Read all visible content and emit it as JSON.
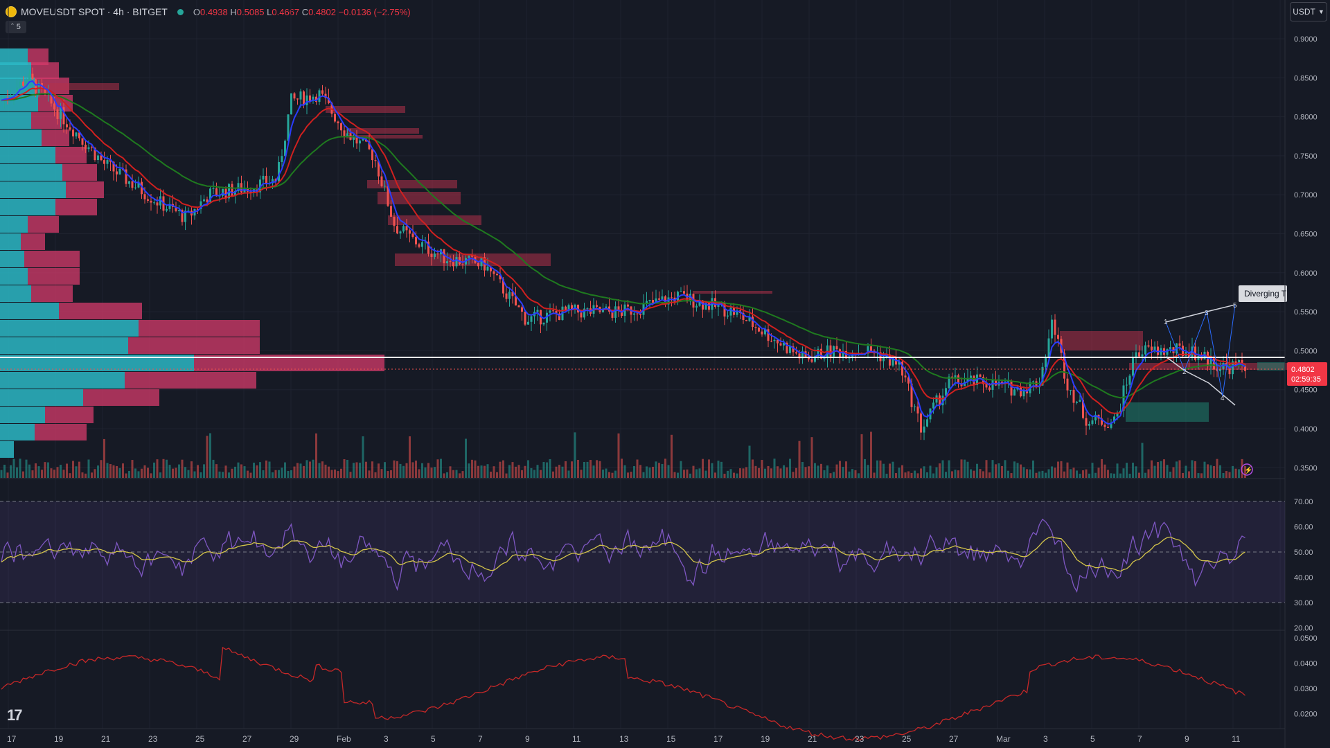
{
  "header": {
    "symbol": "MOVEUSDT SPOT · 4h · BITGET",
    "open_label": "O",
    "open": "0.4938",
    "high_label": "H",
    "high": "0.5085",
    "low_label": "L",
    "low": "0.4667",
    "close_label": "C",
    "close": "0.4802",
    "change": "−0.0136 (−2.75%)",
    "indicator_count": "5"
  },
  "currency": "USDT",
  "price_axis": {
    "ticks": [
      "0.9000",
      "0.8500",
      "0.8000",
      "0.7500",
      "0.7000",
      "0.6500",
      "0.6000",
      "0.5500",
      "0.5000",
      "0.4500",
      "0.4000",
      "0.3500"
    ],
    "last_price": "0.4802",
    "countdown": "02:59:35"
  },
  "rsi_axis": {
    "ticks": [
      "70.00",
      "60.00",
      "50.00",
      "40.00",
      "30.00",
      "20.00"
    ]
  },
  "vol_axis": {
    "ticks": [
      "0.0500",
      "0.0400",
      "0.0300",
      "0.0200"
    ]
  },
  "time_axis": {
    "labels": [
      "17",
      "19",
      "21",
      "23",
      "25",
      "27",
      "29",
      "Feb",
      "3",
      "5",
      "7",
      "9",
      "11",
      "13",
      "15",
      "17",
      "19",
      "21",
      "23",
      "25",
      "27",
      "Mar",
      "3",
      "5",
      "7",
      "9",
      "11"
    ]
  },
  "pattern_label": "Diverging T",
  "pattern_points": [
    "1",
    "2",
    "3",
    "4",
    "5"
  ],
  "colors": {
    "bg": "#161a25",
    "up": "#26a69a",
    "down": "#ef5350",
    "ema_fast": "#2a3cff",
    "ema_mid": "#e0201f",
    "ema_slow": "#1f7a1f",
    "rsi": "#7e57c2",
    "rsi_ma": "#d4c54a"
  }
}
